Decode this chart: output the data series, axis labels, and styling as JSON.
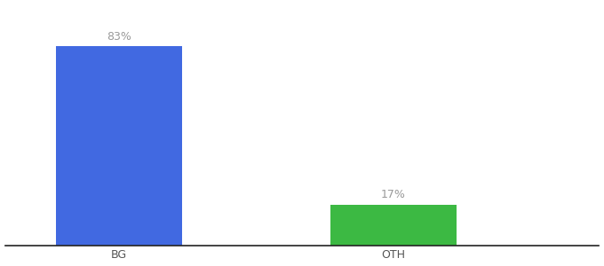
{
  "categories": [
    "BG",
    "OTH"
  ],
  "values": [
    83,
    17
  ],
  "bar_colors": [
    "#4169E1",
    "#3CB943"
  ],
  "labels": [
    "83%",
    "17%"
  ],
  "background_color": "#ffffff",
  "xlabel_fontsize": 9,
  "label_fontsize": 9,
  "label_color": "#999999",
  "ylim": [
    0,
    100
  ],
  "figsize": [
    6.8,
    3.0
  ],
  "dpi": 100,
  "x_positions": [
    0.7,
    1.9
  ],
  "bar_width": 0.55,
  "xlim": [
    0.2,
    2.8
  ]
}
